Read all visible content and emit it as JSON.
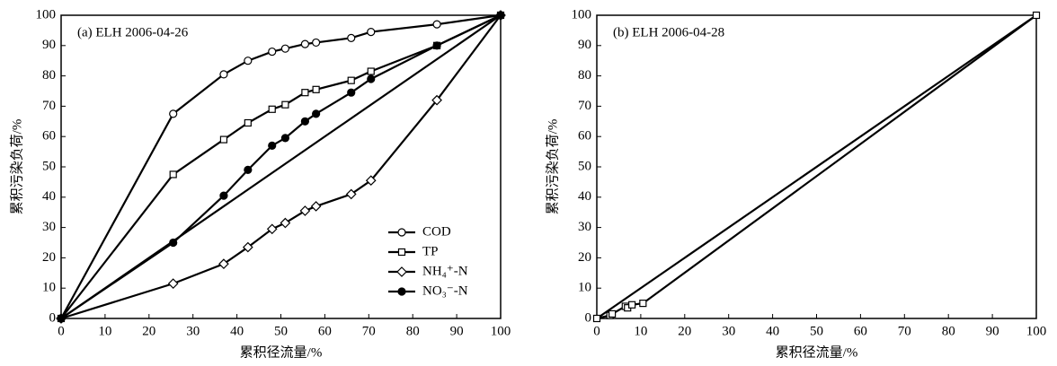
{
  "chart_data": [
    {
      "type": "line",
      "title": "(a) ELH 2006-04-26",
      "xlabel": "累积径流量/%",
      "ylabel": "累积污染负荷/%",
      "xlim": [
        0,
        100
      ],
      "ylim": [
        0,
        100
      ],
      "xticks": [
        0,
        10,
        20,
        30,
        40,
        50,
        60,
        70,
        80,
        90,
        100
      ],
      "yticks": [
        0,
        10,
        20,
        30,
        40,
        50,
        60,
        70,
        80,
        90,
        100
      ],
      "diagonal": true,
      "legend": "lower right",
      "series": [
        {
          "name": "COD",
          "color": "#000000",
          "marker": "circle",
          "filled": false,
          "x": [
            0,
            25.5,
            37,
            42.5,
            48,
            51,
            55.5,
            58,
            66,
            70.5,
            85.5,
            100
          ],
          "values": [
            0,
            67.5,
            80.5,
            85,
            88,
            89,
            90.5,
            91,
            92.5,
            94.5,
            97,
            100
          ]
        },
        {
          "name": "TP",
          "color": "#000000",
          "marker": "square",
          "filled": false,
          "x": [
            0,
            25.5,
            37,
            42.5,
            48,
            51,
            55.5,
            58,
            66,
            70.5,
            85.5,
            100
          ],
          "values": [
            0,
            47.5,
            59,
            64.5,
            69,
            70.5,
            74.5,
            75.5,
            78.5,
            81.5,
            90,
            100
          ]
        },
        {
          "name": "NH₄⁺-N",
          "color": "#000000",
          "marker": "diamond",
          "filled": false,
          "x": [
            0,
            25.5,
            37,
            42.5,
            48,
            51,
            55.5,
            58,
            66,
            70.5,
            85.5,
            100
          ],
          "values": [
            0,
            11.5,
            18,
            23.5,
            29.5,
            31.5,
            35.5,
            37,
            41,
            45.5,
            72,
            100
          ]
        },
        {
          "name": "NO₃⁻-N",
          "color": "#000000",
          "marker": "circle",
          "filled": true,
          "x": [
            0,
            25.5,
            37,
            42.5,
            48,
            51,
            55.5,
            58,
            66,
            70.5,
            85.5,
            100
          ],
          "values": [
            0,
            25,
            40.5,
            49,
            57,
            59.5,
            65,
            67.5,
            74.5,
            79,
            90,
            100
          ]
        }
      ]
    },
    {
      "type": "line",
      "title": "(b) ELH 2006-04-28",
      "xlabel": "累积径流量/%",
      "ylabel": "累积污染负荷/%",
      "xlim": [
        0,
        100
      ],
      "ylim": [
        0,
        100
      ],
      "xticks": [
        0,
        10,
        20,
        30,
        40,
        50,
        60,
        70,
        80,
        90,
        100
      ],
      "yticks": [
        0,
        10,
        20,
        30,
        40,
        50,
        60,
        70,
        80,
        90,
        100
      ],
      "diagonal": true,
      "series": [
        {
          "color": "#000000",
          "marker": "square",
          "filled": false,
          "x": [
            0,
            3,
            3.5,
            6.5,
            7,
            8,
            10.5,
            100
          ],
          "values": [
            0,
            1,
            1.5,
            4,
            3.5,
            4.5,
            5,
            100
          ]
        }
      ]
    }
  ]
}
